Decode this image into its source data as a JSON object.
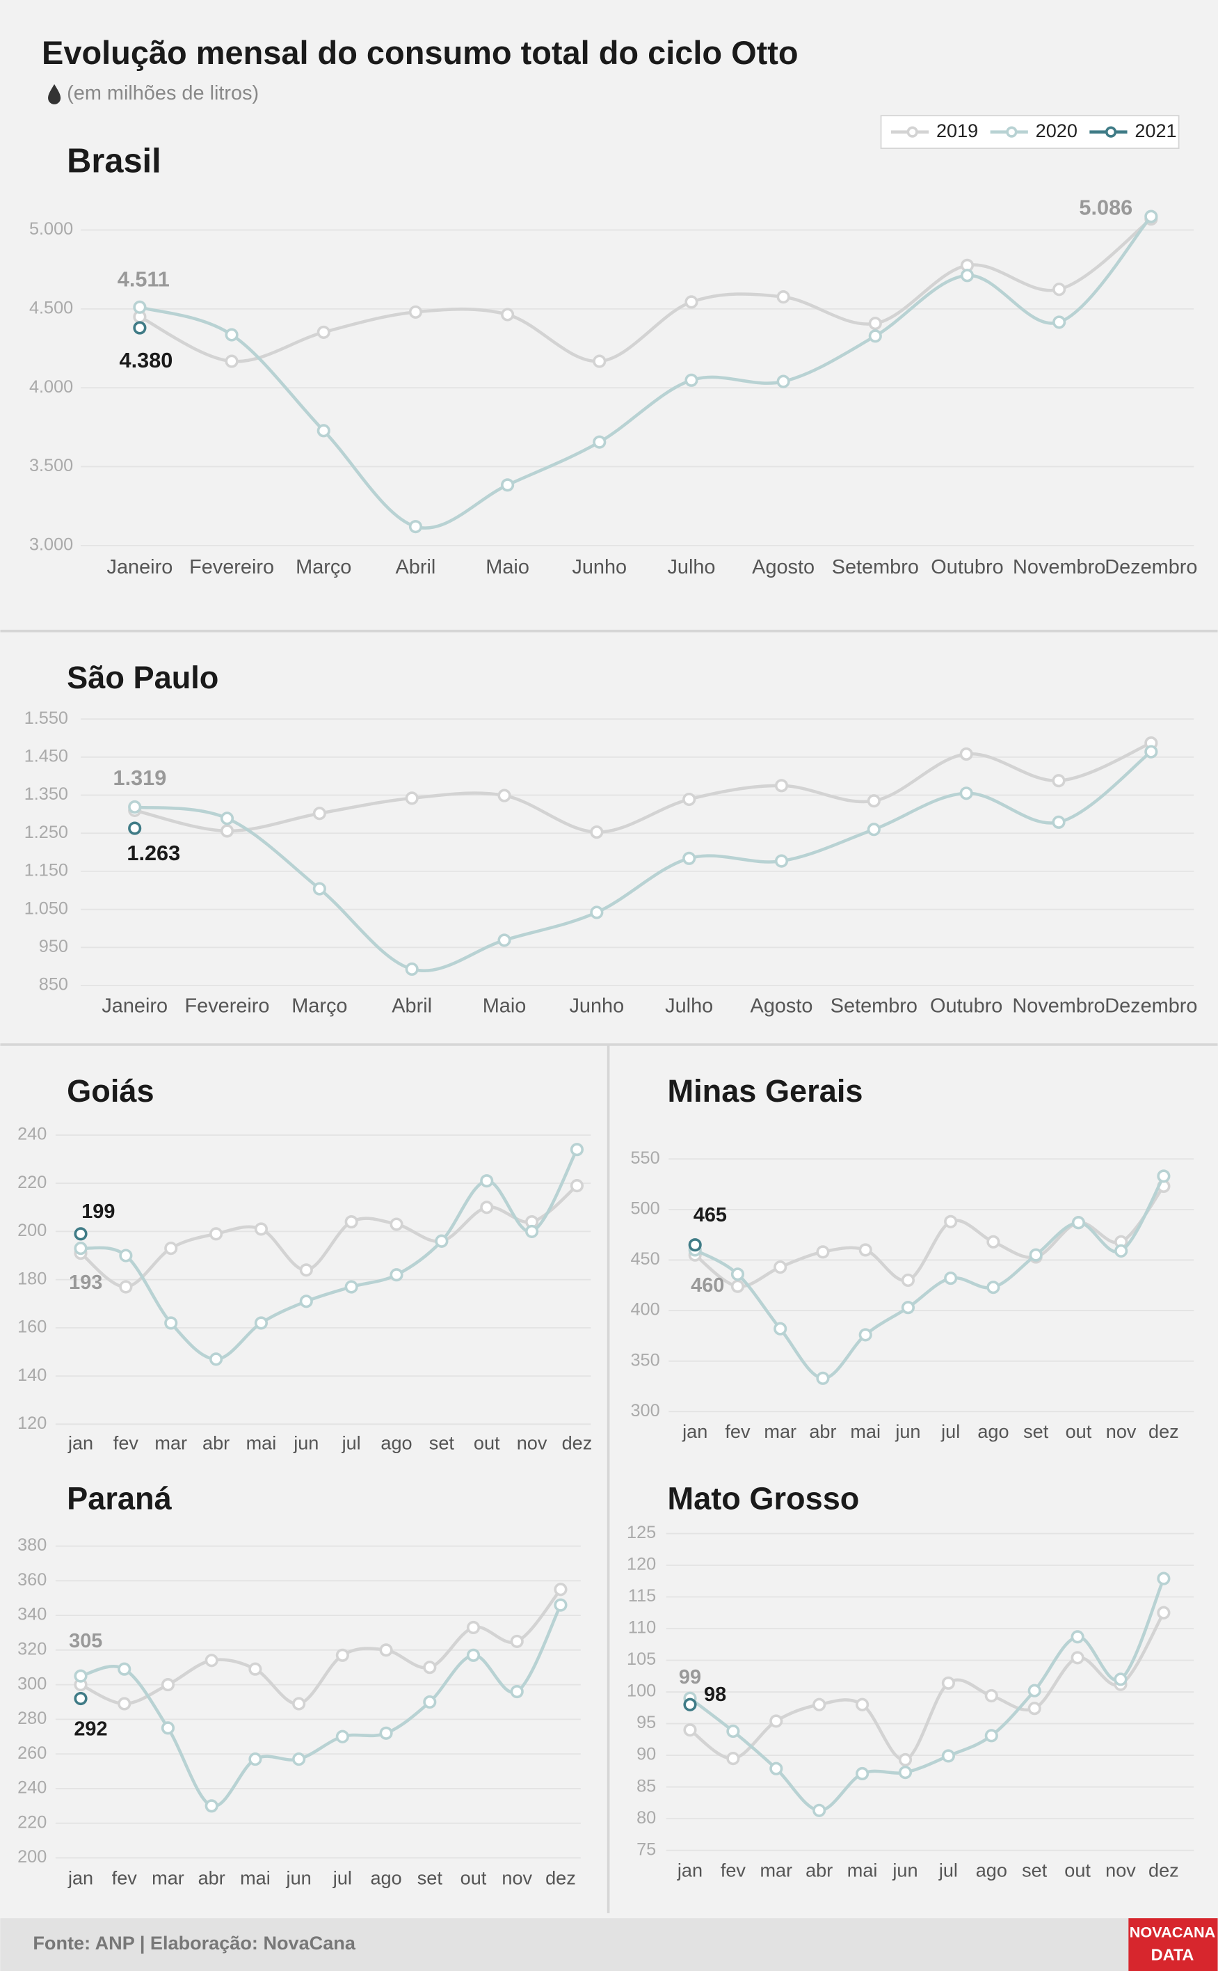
{
  "header": {
    "title": "Evolução mensal do consumo total do ciclo Otto",
    "subtitle": "(em milhões de litros)"
  },
  "chart_data": [
    {
      "type": "line",
      "title": "Brasil",
      "legend": "top-right",
      "grid": true,
      "categories": [
        "Janeiro",
        "Fevereiro",
        "Março",
        "Abril",
        "Maio",
        "Junho",
        "Julho",
        "Agosto",
        "Setembro",
        "Outubro",
        "Novembro",
        "Dezembro"
      ],
      "ylim": [
        3000,
        5000
      ],
      "yticks": [
        {
          "value": 3000,
          "label": "3.000"
        },
        {
          "value": 3500,
          "label": "3.500"
        },
        {
          "value": 4000,
          "label": "4.000"
        },
        {
          "value": 4500,
          "label": "4.500"
        },
        {
          "value": 5000,
          "label": "5.000"
        }
      ],
      "series": [
        {
          "name": "2019",
          "color": "#d3d3d3",
          "values": [
            4450,
            4168,
            4352,
            4480,
            4464,
            4168,
            4544,
            4576,
            4408,
            4776,
            4624,
            5070
          ]
        },
        {
          "name": "2020",
          "color": "#b8d2d3",
          "values": [
            4511,
            4336,
            3728,
            3120,
            3384,
            3656,
            4048,
            4040,
            4328,
            4712,
            4416,
            5086
          ],
          "value_labels": [
            "4.511",
            null,
            null,
            null,
            null,
            null,
            null,
            null,
            null,
            null,
            null,
            "5.086"
          ]
        },
        {
          "name": "2021",
          "color": "#3f7b86",
          "values": [
            4380,
            null,
            null,
            null,
            null,
            null,
            null,
            null,
            null,
            null,
            null,
            null
          ],
          "value_labels": [
            "4.380",
            null,
            null,
            null,
            null,
            null,
            null,
            null,
            null,
            null,
            null,
            null
          ]
        }
      ]
    },
    {
      "type": "line",
      "title": "São Paulo",
      "grid": true,
      "categories": [
        "Janeiro",
        "Fevereiro",
        "Março",
        "Abril",
        "Maio",
        "Junho",
        "Julho",
        "Agosto",
        "Setembro",
        "Outubro",
        "Novembro",
        "Dezembro"
      ],
      "ylim": [
        850,
        1550
      ],
      "yticks": [
        850,
        950,
        {
          "value": 1050,
          "label": "1.050"
        },
        {
          "value": 1150,
          "label": "1.150"
        },
        {
          "value": 1250,
          "label": "1.250"
        },
        {
          "value": 1350,
          "label": "1.350"
        },
        {
          "value": 1450,
          "label": "1.450"
        },
        {
          "value": 1550,
          "label": "1.550"
        }
      ],
      "series": [
        {
          "color": "#d3d3d3",
          "values": [
            1310,
            1256,
            1302,
            1342,
            1349,
            1253,
            1339,
            1375,
            1335,
            1458,
            1388,
            1487
          ]
        },
        {
          "color": "#b8d2d3",
          "values": [
            1319,
            1289,
            1104,
            893,
            969,
            1042,
            1184,
            1177,
            1260,
            1355,
            1279,
            1464
          ],
          "value_labels": [
            "1.319",
            null,
            null,
            null,
            null,
            null,
            null,
            null,
            null,
            null,
            null,
            null
          ]
        },
        {
          "color": "#3f7b86",
          "values": [
            1263,
            null,
            null,
            null,
            null,
            null,
            null,
            null,
            null,
            null,
            null,
            null
          ],
          "value_labels": [
            "1.263",
            null,
            null,
            null,
            null,
            null,
            null,
            null,
            null,
            null,
            null,
            null
          ]
        }
      ]
    },
    {
      "type": "line",
      "title": "Goiás",
      "grid": true,
      "categories": [
        "jan",
        "fev",
        "mar",
        "abr",
        "mai",
        "jun",
        "jul",
        "ago",
        "set",
        "out",
        "nov",
        "dez"
      ],
      "ylim": [
        120,
        240
      ],
      "yticks": [
        120,
        140,
        160,
        180,
        200,
        220,
        240
      ],
      "series": [
        {
          "color": "#d3d3d3",
          "values": [
            191,
            177,
            193,
            199,
            201,
            184,
            204,
            203,
            196,
            210,
            204,
            219
          ]
        },
        {
          "color": "#b8d2d3",
          "values": [
            193,
            190,
            162,
            147,
            162,
            171,
            177,
            182,
            196,
            221,
            200,
            234
          ],
          "value_labels": [
            "193",
            null,
            null,
            null,
            null,
            null,
            null,
            null,
            null,
            null,
            null,
            null
          ]
        },
        {
          "color": "#3f7b86",
          "values": [
            199,
            null,
            null,
            null,
            null,
            null,
            null,
            null,
            null,
            null,
            null,
            null
          ],
          "value_labels": [
            "199",
            null,
            null,
            null,
            null,
            null,
            null,
            null,
            null,
            null,
            null,
            null
          ]
        }
      ]
    },
    {
      "type": "line",
      "title": "Minas Gerais",
      "grid": true,
      "categories": [
        "jan",
        "fev",
        "mar",
        "abr",
        "mai",
        "jun",
        "jul",
        "ago",
        "set",
        "out",
        "nov",
        "dez"
      ],
      "ylim": [
        300,
        550
      ],
      "yticks": [
        300,
        350,
        400,
        450,
        500,
        550
      ],
      "series": [
        {
          "color": "#d3d3d3",
          "values": [
            455,
            424,
            443,
            458,
            460,
            430,
            488,
            468,
            453,
            487,
            468,
            523
          ]
        },
        {
          "color": "#b8d2d3",
          "values": [
            460,
            436,
            382,
            333,
            376,
            403,
            432,
            423,
            455,
            487,
            459,
            533
          ],
          "value_labels": [
            "460",
            null,
            null,
            null,
            null,
            null,
            null,
            null,
            null,
            null,
            null,
            null
          ]
        },
        {
          "color": "#3f7b86",
          "values": [
            465,
            null,
            null,
            null,
            null,
            null,
            null,
            null,
            null,
            null,
            null,
            null
          ],
          "value_labels": [
            "465",
            null,
            null,
            null,
            null,
            null,
            null,
            null,
            null,
            null,
            null,
            null
          ]
        }
      ]
    },
    {
      "type": "line",
      "title": "Paraná",
      "grid": true,
      "categories": [
        "jan",
        "fev",
        "mar",
        "abr",
        "mai",
        "jun",
        "jul",
        "ago",
        "set",
        "out",
        "nov",
        "dez"
      ],
      "ylim": [
        200,
        380
      ],
      "yticks": [
        200,
        220,
        240,
        260,
        280,
        300,
        320,
        340,
        360,
        380
      ],
      "series": [
        {
          "color": "#d3d3d3",
          "values": [
            300,
            289,
            300,
            314,
            309,
            289,
            317,
            320,
            310,
            333,
            325,
            355
          ]
        },
        {
          "color": "#b8d2d3",
          "values": [
            305,
            309,
            275,
            230,
            257,
            257,
            270,
            272,
            290,
            317,
            296,
            346
          ],
          "value_labels": [
            "305",
            null,
            null,
            null,
            null,
            null,
            null,
            null,
            null,
            null,
            null,
            null
          ]
        },
        {
          "color": "#3f7b86",
          "values": [
            292,
            null,
            null,
            null,
            null,
            null,
            null,
            null,
            null,
            null,
            null,
            null
          ],
          "value_labels": [
            "292",
            null,
            null,
            null,
            null,
            null,
            null,
            null,
            null,
            null,
            null,
            null
          ]
        }
      ]
    },
    {
      "type": "line",
      "title": "Mato Grosso",
      "grid": true,
      "categories": [
        "jan",
        "fev",
        "mar",
        "abr",
        "mai",
        "jun",
        "jul",
        "ago",
        "set",
        "out",
        "nov",
        "dez"
      ],
      "ylim": [
        75,
        125
      ],
      "yticks": [
        75,
        80,
        85,
        90,
        95,
        100,
        105,
        110,
        115,
        120,
        125
      ],
      "series": [
        {
          "color": "#d3d3d3",
          "values": [
            94.0,
            89.5,
            95.4,
            98.0,
            98.0,
            89.3,
            101.4,
            99.4,
            97.4,
            105.4,
            101.2,
            112.5
          ]
        },
        {
          "color": "#b8d2d3",
          "values": [
            99,
            93.8,
            87.9,
            81.3,
            87.1,
            87.3,
            89.9,
            93.1,
            100.2,
            108.7,
            102.0,
            117.9
          ],
          "value_labels": [
            "99",
            null,
            null,
            null,
            null,
            null,
            null,
            null,
            null,
            null,
            null,
            null
          ]
        },
        {
          "color": "#3f7b86",
          "values": [
            98,
            null,
            null,
            null,
            null,
            null,
            null,
            null,
            null,
            null,
            null,
            null
          ],
          "value_labels": [
            "98",
            null,
            null,
            null,
            null,
            null,
            null,
            null,
            null,
            null,
            null,
            null
          ]
        }
      ]
    }
  ],
  "footer": {
    "source": "Fonte: ANP | Elaboração: NovaCana",
    "logo": [
      "NOVACANA",
      "DATA"
    ]
  }
}
